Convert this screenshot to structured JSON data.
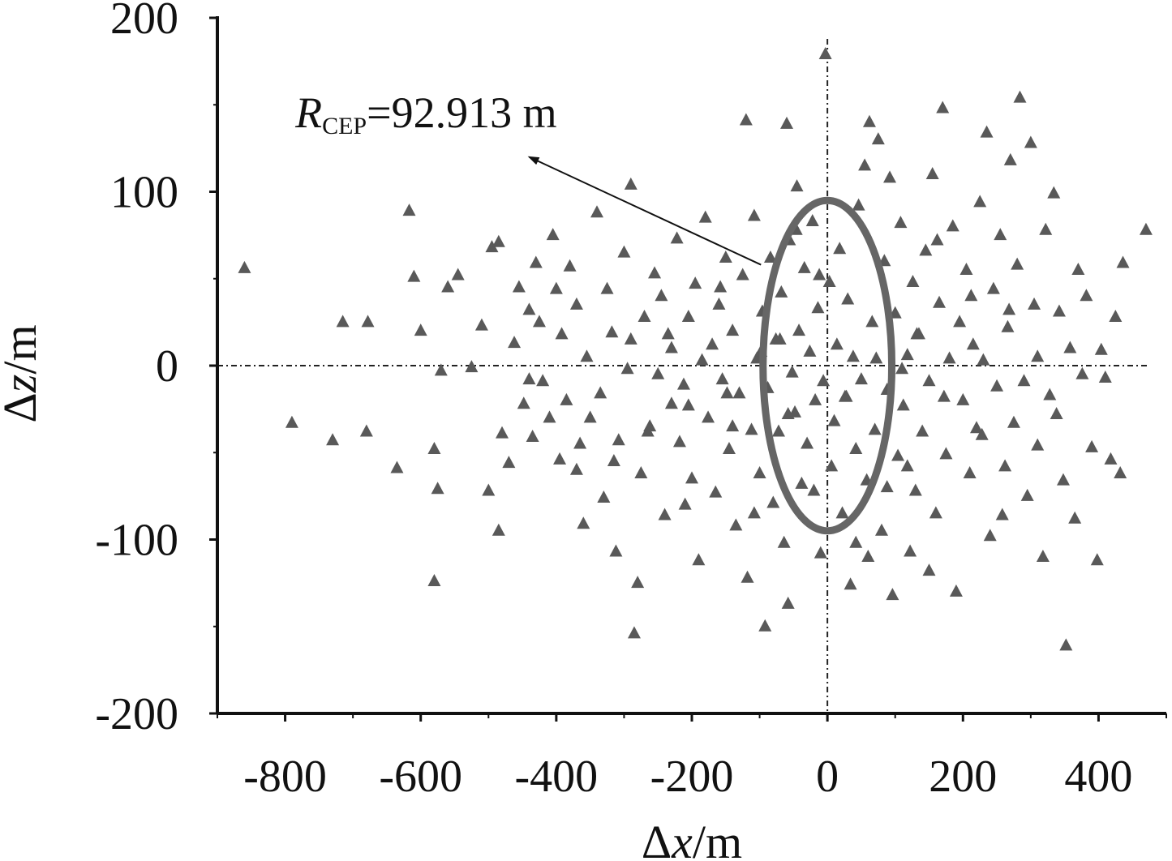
{
  "chart_data": {
    "type": "scatter",
    "title": "",
    "xlabel": {
      "delta": "Δ",
      "var": "x",
      "unit": "/m"
    },
    "ylabel": {
      "delta": "Δ",
      "var": "z",
      "unit": "/m"
    },
    "xlim": [
      -900,
      500
    ],
    "ylim": [
      -200,
      200
    ],
    "xticks": [
      -800,
      -600,
      -400,
      -200,
      0,
      200,
      400
    ],
    "yticks": [
      -200,
      -100,
      0,
      100,
      200
    ],
    "xtick_labels": [
      "-800",
      "-600",
      "-400",
      "-200",
      "0",
      "200",
      "400"
    ],
    "ytick_labels": [
      "-200",
      "-100",
      "0",
      "100",
      "200"
    ],
    "grid": false,
    "marker": "triangle",
    "colors": {
      "marker": "#595959",
      "ellipse": "#666666",
      "axis": "#111111",
      "reference_lines": "#222222"
    },
    "reference_lines": {
      "x": 0,
      "y": 0,
      "style": "dash-dot"
    },
    "cep_ellipse": {
      "center": [
        0,
        0
      ],
      "semi_axis_x": 95,
      "semi_axis_z": 95
    },
    "annotation": {
      "symbol": "R",
      "subscript": "CEP",
      "text": "=92.913 m",
      "text_anchor": [
        -785,
        137
      ],
      "arrow_from": [
        -98,
        58
      ],
      "arrow_to": [
        -440,
        120
      ]
    },
    "points": [
      [
        -860,
        56
      ],
      [
        -790,
        -33
      ],
      [
        -730,
        -43
      ],
      [
        -715,
        25
      ],
      [
        -680,
        -38
      ],
      [
        -678,
        25
      ],
      [
        -635,
        -59
      ],
      [
        -617,
        89
      ],
      [
        -610,
        51
      ],
      [
        -600,
        20
      ],
      [
        -580,
        -48
      ],
      [
        -580,
        -124
      ],
      [
        -575,
        -71
      ],
      [
        -570,
        -3
      ],
      [
        -560,
        45
      ],
      [
        -545,
        52
      ],
      [
        -525,
        -1
      ],
      [
        -510,
        23
      ],
      [
        -500,
        -72
      ],
      [
        -495,
        68
      ],
      [
        -485,
        71
      ],
      [
        -480,
        -39
      ],
      [
        -485,
        -95
      ],
      [
        -470,
        -56
      ],
      [
        -462,
        13
      ],
      [
        -455,
        45
      ],
      [
        -448,
        -22
      ],
      [
        -440,
        32
      ],
      [
        -435,
        -41
      ],
      [
        -430,
        59
      ],
      [
        -425,
        25
      ],
      [
        -420,
        -9
      ],
      [
        -410,
        -30
      ],
      [
        -405,
        75
      ],
      [
        -400,
        44
      ],
      [
        -395,
        -54
      ],
      [
        -392,
        18
      ],
      [
        -385,
        -20
      ],
      [
        -380,
        57
      ],
      [
        -370,
        35
      ],
      [
        -365,
        -45
      ],
      [
        -360,
        -91
      ],
      [
        -355,
        5
      ],
      [
        -350,
        -30
      ],
      [
        -340,
        88
      ],
      [
        -335,
        -16
      ],
      [
        -330,
        -76
      ],
      [
        -325,
        44
      ],
      [
        -318,
        19
      ],
      [
        -312,
        -107
      ],
      [
        -308,
        -43
      ],
      [
        -300,
        65
      ],
      [
        -295,
        -2
      ],
      [
        -290,
        104
      ],
      [
        -285,
        -154
      ],
      [
        -280,
        -125
      ],
      [
        -275,
        -62
      ],
      [
        -270,
        28
      ],
      [
        -262,
        -35
      ],
      [
        -255,
        53
      ],
      [
        -250,
        -5
      ],
      [
        -245,
        40
      ],
      [
        -240,
        -86
      ],
      [
        -235,
        18
      ],
      [
        -230,
        -22
      ],
      [
        -222,
        73
      ],
      [
        -218,
        -44
      ],
      [
        -212,
        -11
      ],
      [
        -205,
        28
      ],
      [
        -200,
        -65
      ],
      [
        -195,
        47
      ],
      [
        -190,
        -112
      ],
      [
        -185,
        3
      ],
      [
        -180,
        85
      ],
      [
        -176,
        -30
      ],
      [
        -170,
        12
      ],
      [
        -165,
        -73
      ],
      [
        -160,
        35
      ],
      [
        -155,
        -8
      ],
      [
        -150,
        62
      ],
      [
        -145,
        -48
      ],
      [
        -140,
        20
      ],
      [
        -135,
        -92
      ],
      [
        -130,
        -16
      ],
      [
        -125,
        52
      ],
      [
        -120,
        141
      ],
      [
        -118,
        -122
      ],
      [
        -112,
        -37
      ],
      [
        -108,
        86
      ],
      [
        -104,
        4
      ],
      [
        -100,
        -62
      ],
      [
        -96,
        31
      ],
      [
        -92,
        -150
      ],
      [
        -88,
        -13
      ],
      [
        -84,
        62
      ],
      [
        -80,
        -79
      ],
      [
        -76,
        15
      ],
      [
        -72,
        -38
      ],
      [
        -68,
        42
      ],
      [
        -64,
        -102
      ],
      [
        -60,
        139
      ],
      [
        -58,
        -137
      ],
      [
        -56,
        72
      ],
      [
        -52,
        -4
      ],
      [
        -48,
        -27
      ],
      [
        -45,
        103
      ],
      [
        -42,
        20
      ],
      [
        -38,
        -68
      ],
      [
        -34,
        56
      ],
      [
        -30,
        -45
      ],
      [
        -26,
        8
      ],
      [
        -22,
        83
      ],
      [
        -18,
        -20
      ],
      [
        -14,
        33
      ],
      [
        -10,
        -108
      ],
      [
        -6,
        -9
      ],
      [
        -3,
        179
      ],
      [
        3,
        48
      ],
      [
        6,
        -58
      ],
      [
        10,
        -32
      ],
      [
        14,
        12
      ],
      [
        18,
        67
      ],
      [
        22,
        -85
      ],
      [
        26,
        -18
      ],
      [
        30,
        38
      ],
      [
        34,
        -126
      ],
      [
        38,
        5
      ],
      [
        42,
        -48
      ],
      [
        46,
        92
      ],
      [
        50,
        -8
      ],
      [
        55,
        115
      ],
      [
        58,
        -66
      ],
      [
        62,
        140
      ],
      [
        66,
        25
      ],
      [
        70,
        -37
      ],
      [
        75,
        130
      ],
      [
        80,
        -95
      ],
      [
        84,
        60
      ],
      [
        88,
        -14
      ],
      [
        92,
        108
      ],
      [
        96,
        -132
      ],
      [
        100,
        30
      ],
      [
        104,
        -52
      ],
      [
        108,
        82
      ],
      [
        112,
        -23
      ],
      [
        118,
        6
      ],
      [
        122,
        -107
      ],
      [
        126,
        48
      ],
      [
        130,
        -72
      ],
      [
        135,
        18
      ],
      [
        140,
        -38
      ],
      [
        145,
        66
      ],
      [
        150,
        -9
      ],
      [
        155,
        110
      ],
      [
        160,
        -85
      ],
      [
        165,
        36
      ],
      [
        170,
        148
      ],
      [
        175,
        -51
      ],
      [
        180,
        4
      ],
      [
        185,
        80
      ],
      [
        190,
        -130
      ],
      [
        195,
        25
      ],
      [
        200,
        -20
      ],
      [
        205,
        55
      ],
      [
        210,
        -62
      ],
      [
        215,
        12
      ],
      [
        220,
        -36
      ],
      [
        225,
        94
      ],
      [
        230,
        3
      ],
      [
        235,
        134
      ],
      [
        240,
        -98
      ],
      [
        245,
        44
      ],
      [
        250,
        -12
      ],
      [
        255,
        75
      ],
      [
        262,
        -58
      ],
      [
        266,
        22
      ],
      [
        270,
        118
      ],
      [
        275,
        -33
      ],
      [
        280,
        58
      ],
      [
        284,
        154
      ],
      [
        290,
        -9
      ],
      [
        295,
        -75
      ],
      [
        300,
        128
      ],
      [
        305,
        35
      ],
      [
        310,
        -46
      ],
      [
        318,
        -110
      ],
      [
        322,
        78
      ],
      [
        328,
        -17
      ],
      [
        334,
        99
      ],
      [
        338,
        -28
      ],
      [
        342,
        31
      ],
      [
        348,
        -66
      ],
      [
        352,
        -161
      ],
      [
        358,
        10
      ],
      [
        365,
        -88
      ],
      [
        370,
        55
      ],
      [
        376,
        -5
      ],
      [
        382,
        40
      ],
      [
        390,
        -47
      ],
      [
        398,
        -112
      ],
      [
        404,
        9
      ],
      [
        410,
        -7
      ],
      [
        418,
        -54
      ],
      [
        425,
        28
      ],
      [
        432,
        -62
      ],
      [
        436,
        59
      ],
      [
        470,
        78
      ],
      [
        -230,
        10
      ],
      [
        -148,
        -16
      ],
      [
        -98,
        8
      ],
      [
        -46,
        78
      ],
      [
        42,
        -102
      ],
      [
        88,
        -70
      ],
      [
        132,
        18
      ],
      [
        172,
        -18
      ],
      [
        228,
        -40
      ],
      [
        268,
        32
      ],
      [
        310,
        5
      ],
      [
        -315,
        -55
      ],
      [
        -265,
        -38
      ],
      [
        -205,
        -23
      ],
      [
        -158,
        45
      ],
      [
        -108,
        -85
      ],
      [
        -58,
        -28
      ],
      [
        -12,
        52
      ],
      [
        28,
        -18
      ],
      [
        72,
        4
      ],
      [
        118,
        -58
      ],
      [
        162,
        72
      ],
      [
        212,
        40
      ],
      [
        258,
        -86
      ],
      [
        -440,
        -8
      ],
      [
        -370,
        -60
      ],
      [
        -290,
        15
      ],
      [
        -210,
        -80
      ],
      [
        -140,
        -35
      ],
      [
        -70,
        15
      ],
      [
        -20,
        -72
      ],
      [
        60,
        -110
      ],
      [
        110,
        -2
      ],
      [
        150,
        -118
      ]
    ]
  }
}
